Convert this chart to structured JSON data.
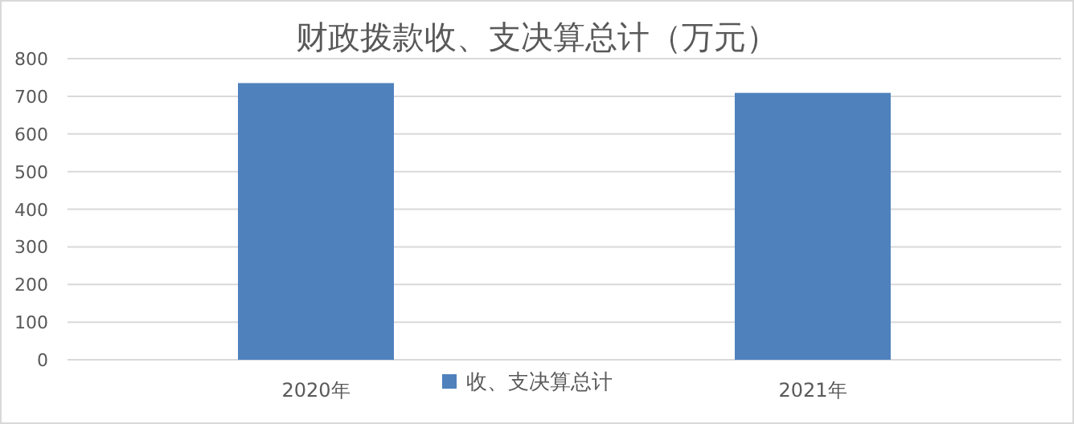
{
  "chart_data": {
    "type": "bar",
    "title": "财政拨款收、支决算总计（万元）",
    "categories": [
      "2020年",
      "2021年"
    ],
    "series": [
      {
        "name": "收、支决算总计",
        "color": "#4f81bd",
        "values": [
          735,
          709
        ]
      }
    ],
    "ylim": [
      0,
      800
    ],
    "yticks": [
      0,
      100,
      200,
      300,
      400,
      500,
      600,
      700,
      800
    ],
    "grid": "y",
    "legend": "bottom"
  }
}
